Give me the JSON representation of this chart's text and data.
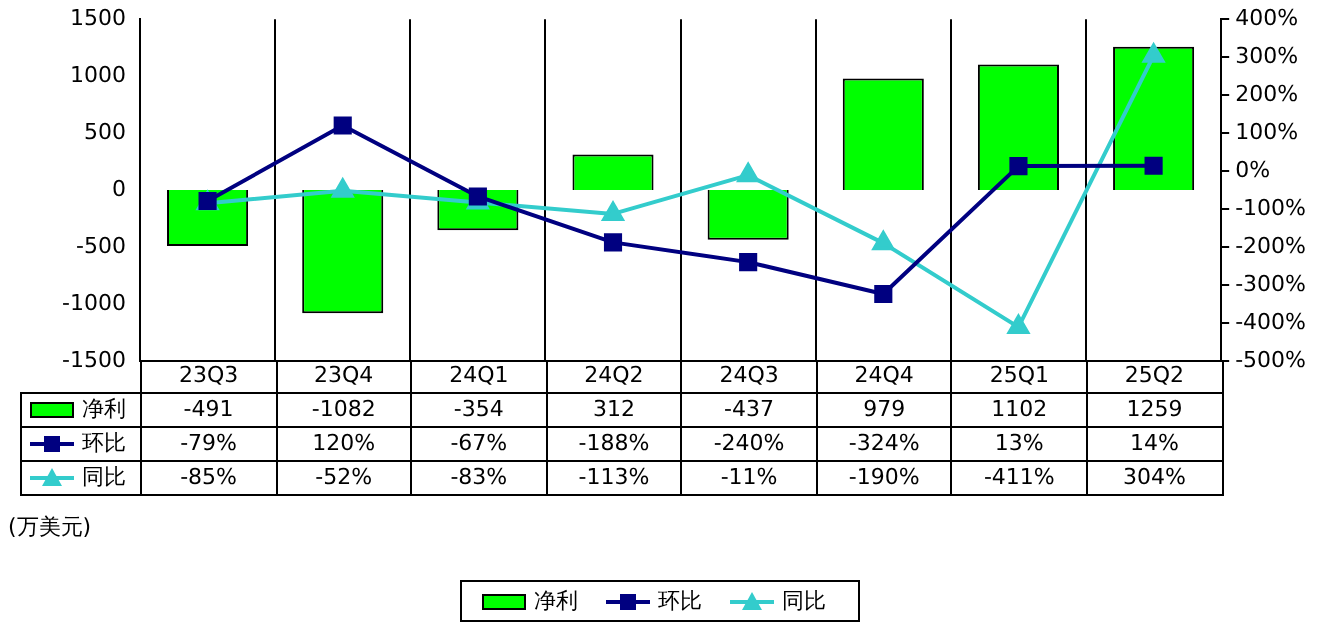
{
  "chart_data": {
    "type": "bar",
    "categories": [
      "23Q3",
      "23Q4",
      "24Q1",
      "24Q2",
      "24Q3",
      "24Q4",
      "25Q1",
      "25Q2"
    ],
    "series": [
      {
        "name": "净利",
        "color": "#00ff00",
        "values": [
          -491,
          -1082,
          -354,
          312,
          -437,
          979,
          1102,
          1259
        ],
        "value_labels": [
          "-491",
          "-1082",
          "-354",
          "312",
          "-437",
          "979",
          "1102",
          "1259"
        ]
      },
      {
        "name": "环比",
        "type": "line",
        "axis": "y2",
        "color": "#000080",
        "marker": "square",
        "values": [
          -79,
          120,
          -67,
          -188,
          -240,
          -324,
          13,
          14
        ],
        "value_labels": [
          "-79%",
          "120%",
          "-67%",
          "-188%",
          "-240%",
          "-324%",
          "13%",
          "14%"
        ]
      },
      {
        "name": "同比",
        "type": "line",
        "axis": "y2",
        "color": "#33cccc",
        "marker": "triangle",
        "values": [
          -85,
          -52,
          -83,
          -113,
          -11,
          -190,
          -411,
          304
        ],
        "value_labels": [
          "-85%",
          "-52%",
          "-83%",
          "-113%",
          "-11%",
          "-190%",
          "-411%",
          "304%"
        ]
      }
    ],
    "ylim": [
      -1500,
      1500
    ],
    "yticks": [
      -1500,
      -1000,
      -500,
      0,
      500,
      1000,
      1500
    ],
    "y2lim": [
      -500,
      400
    ],
    "y2ticks": [
      {
        "value": -500,
        "label": "-500%"
      },
      {
        "value": -400,
        "label": "-400%"
      },
      {
        "value": -300,
        "label": "-300%"
      },
      {
        "value": -200,
        "label": "-200%"
      },
      {
        "value": -100,
        "label": "-100%"
      },
      {
        "value": 0,
        "label": "0%"
      },
      {
        "value": 100,
        "label": "100%"
      },
      {
        "value": 200,
        "label": "200%"
      },
      {
        "value": 300,
        "label": "300%"
      },
      {
        "value": 400,
        "label": "400%"
      }
    ],
    "grid": "x",
    "legend": "bottom",
    "annotations": [
      "(万美元)"
    ]
  }
}
